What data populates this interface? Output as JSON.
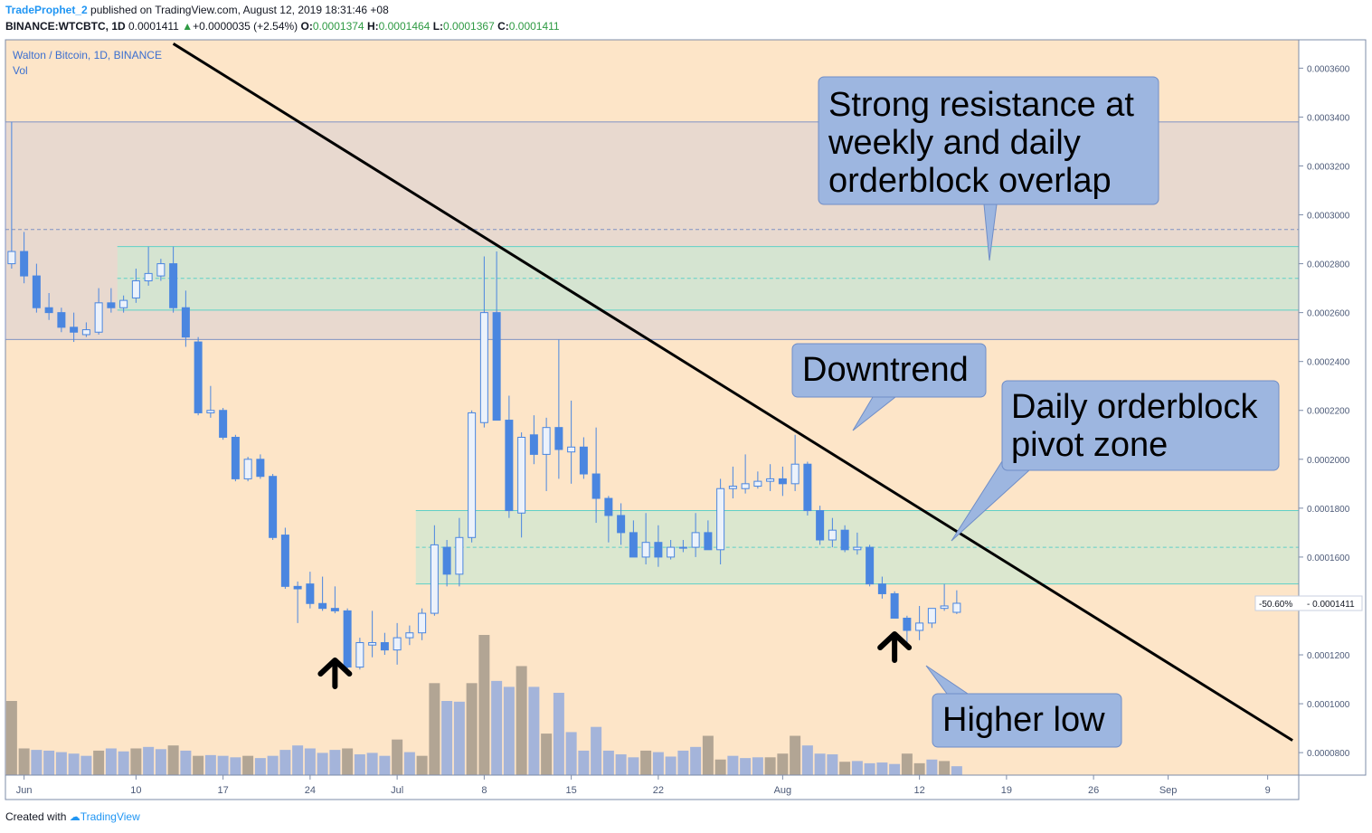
{
  "header": {
    "author": "TradeProphet_2",
    "published": "published on TradingView.com, August 12, 2019 18:31:46 +08",
    "symbol": "BINANCE:WTCBTC, 1D",
    "last": "0.0001411",
    "change": "+0.0000035 (+2.54%)",
    "o_label": "O:",
    "o": "0.0001374",
    "h_label": "H:",
    "h": "0.0001464",
    "l_label": "L:",
    "l": "0.0001367",
    "c_label": "C:",
    "c": "0.0001411"
  },
  "legend": {
    "title": "Walton / Bitcoin, 1D, BINANCE",
    "vol": "Vol"
  },
  "footer": {
    "created": "Created with",
    "brand": "TradingView"
  },
  "colors": {
    "background": "#fde5c8",
    "bull_fill": "#ecf2fb",
    "candle": "#4a86e0",
    "vol_up": "#a4b4da",
    "vol_down": "#b2a594",
    "trendline": "#000000",
    "zone_fill": "#cfe7d2",
    "zone_line": "#5fd0c7",
    "resist_fill": "#e8d9cf",
    "callout_fill": "#9db6e0",
    "callout_stroke": "#6f8dc7"
  },
  "chart_data": {
    "type": "candlestick",
    "x_axis": {
      "start": "2019-05-31",
      "end": "2019-09-11",
      "tick_labels": [
        "Jun",
        "10",
        "17",
        "24",
        "Jul",
        "8",
        "15",
        "22",
        "Aug",
        "12",
        "19",
        "26",
        "Sep",
        "9"
      ],
      "tick_dates": [
        "2019-06-01",
        "2019-06-10",
        "2019-06-17",
        "2019-06-24",
        "2019-07-01",
        "2019-07-08",
        "2019-07-15",
        "2019-07-22",
        "2019-08-01",
        "2019-08-12",
        "2019-08-19",
        "2019-08-26",
        "2019-09-01",
        "2019-09-09"
      ]
    },
    "y_axis": {
      "min": 7.08e-05,
      "max": 0.0003716,
      "tick_labels": [
        "0.0000800",
        "0.0001000",
        "0.0001200",
        "0.0001400",
        "0.0001600",
        "0.0001800",
        "0.0002000",
        "0.0002200",
        "0.0002400",
        "0.0002600",
        "0.0002800",
        "0.0003000",
        "0.0003200",
        "0.0003400",
        "0.0003600"
      ],
      "tick_values": [
        8e-05,
        0.0001,
        0.00012,
        0.00014,
        0.00016,
        0.00018,
        0.0002,
        0.00022,
        0.00024,
        0.00026,
        0.00028,
        0.0003,
        0.00032,
        0.00034,
        0.00036
      ]
    },
    "price_tag": {
      "percent": "-50.60%",
      "value": "0.0001411",
      "price": 0.0001411
    },
    "candles_ohlc": [
      [
        0.00028,
        0.000338,
        0.000278,
        0.000285
      ],
      [
        0.000285,
        0.000293,
        0.000272,
        0.000275
      ],
      [
        0.000275,
        0.00028,
        0.00026,
        0.000262
      ],
      [
        0.000262,
        0.000268,
        0.000257,
        0.00026
      ],
      [
        0.00026,
        0.000262,
        0.000252,
        0.000254
      ],
      [
        0.000254,
        0.00026,
        0.000248,
        0.000252
      ],
      [
        0.000251,
        0.000256,
        0.00025,
        0.000253
      ],
      [
        0.000252,
        0.00027,
        0.000251,
        0.000264
      ],
      [
        0.000264,
        0.00027,
        0.00026,
        0.000262
      ],
      [
        0.000262,
        0.000267,
        0.00026,
        0.000265
      ],
      [
        0.000266,
        0.000278,
        0.000264,
        0.000273
      ],
      [
        0.000273,
        0.000287,
        0.000271,
        0.000276
      ],
      [
        0.000275,
        0.000282,
        0.000273,
        0.00028
      ],
      [
        0.00028,
        0.000287,
        0.00026,
        0.000262
      ],
      [
        0.000262,
        0.000269,
        0.000246,
        0.00025
      ],
      [
        0.000248,
        0.00025,
        0.000218,
        0.000219
      ],
      [
        0.000219,
        0.00023,
        0.000217,
        0.00022
      ],
      [
        0.00022,
        0.000221,
        0.000208,
        0.000209
      ],
      [
        0.000209,
        0.00021,
        0.000191,
        0.000192
      ],
      [
        0.000192,
        0.000201,
        0.000191,
        0.0002
      ],
      [
        0.0002,
        0.000202,
        0.000192,
        0.000193
      ],
      [
        0.000193,
        0.000194,
        0.000167,
        0.000168
      ],
      [
        0.000169,
        0.000172,
        0.000147,
        0.000148
      ],
      [
        0.000148,
        0.00015,
        0.000133,
        0.000147
      ],
      [
        0.000149,
        0.000154,
        0.000139,
        0.000141
      ],
      [
        0.000141,
        0.000152,
        0.000138,
        0.000139
      ],
      [
        0.000139,
        0.000148,
        0.000137,
        0.000138
      ],
      [
        0.000138,
        0.000139,
        0.000113,
        0.000115
      ],
      [
        0.000115,
        0.000127,
        0.000114,
        0.000125
      ],
      [
        0.000124,
        0.000138,
        0.000119,
        0.000125
      ],
      [
        0.000125,
        0.000129,
        0.00012,
        0.000122
      ],
      [
        0.000122,
        0.000133,
        0.000116,
        0.000127
      ],
      [
        0.000127,
        0.000132,
        0.000124,
        0.000129
      ],
      [
        0.000129,
        0.000139,
        0.000126,
        0.000137
      ],
      [
        0.000137,
        0.000173,
        0.000136,
        0.000165
      ],
      [
        0.000164,
        0.000167,
        0.000148,
        0.000153
      ],
      [
        0.000153,
        0.000176,
        0.000148,
        0.000168
      ],
      [
        0.000168,
        0.00022,
        0.000166,
        0.000219
      ],
      [
        0.000215,
        0.000283,
        0.000213,
        0.00026
      ],
      [
        0.00026,
        0.000285,
        0.000216,
        0.000216
      ],
      [
        0.000216,
        0.000226,
        0.000176,
        0.000179
      ],
      [
        0.000178,
        0.000211,
        0.000168,
        0.000209
      ],
      [
        0.00021,
        0.000218,
        0.000198,
        0.000202
      ],
      [
        0.000202,
        0.000217,
        0.000187,
        0.000213
      ],
      [
        0.000213,
        0.000249,
        0.000192,
        0.000204
      ],
      [
        0.000203,
        0.000224,
        0.00019,
        0.000205
      ],
      [
        0.000205,
        0.000209,
        0.000192,
        0.000194
      ],
      [
        0.000194,
        0.000213,
        0.000174,
        0.000184
      ],
      [
        0.000184,
        0.000185,
        0.000166,
        0.000177
      ],
      [
        0.000177,
        0.000182,
        0.000165,
        0.00017
      ],
      [
        0.00017,
        0.000175,
        0.000164,
        0.00016
      ],
      [
        0.00016,
        0.000178,
        0.000157,
        0.000166
      ],
      [
        0.000166,
        0.000173,
        0.000156,
        0.00016
      ],
      [
        0.00016,
        0.000167,
        0.000159,
        0.000164
      ],
      [
        0.000164,
        0.000167,
        0.000162,
        0.000164
      ],
      [
        0.000164,
        0.000178,
        0.00016,
        0.00017
      ],
      [
        0.00017,
        0.000175,
        0.000163,
        0.000163
      ],
      [
        0.000163,
        0.000192,
        0.000157,
        0.000188
      ],
      [
        0.000188,
        0.000197,
        0.000184,
        0.000189
      ],
      [
        0.000188,
        0.000202,
        0.000186,
        0.00019
      ],
      [
        0.000189,
        0.000195,
        0.000188,
        0.000191
      ],
      [
        0.000191,
        0.000198,
        0.000187,
        0.000192
      ],
      [
        0.000192,
        0.000197,
        0.000185,
        0.00019
      ],
      [
        0.00019,
        0.00021,
        0.000187,
        0.000198
      ],
      [
        0.000198,
        0.000199,
        0.000177,
        0.000179
      ],
      [
        0.000179,
        0.000181,
        0.000165,
        0.000167
      ],
      [
        0.000167,
        0.000176,
        0.000164,
        0.000171
      ],
      [
        0.000171,
        0.000173,
        0.000162,
        0.000163
      ],
      [
        0.000163,
        0.00017,
        0.000161,
        0.000164
      ],
      [
        0.000164,
        0.000165,
        0.000148,
        0.000149
      ],
      [
        0.000149,
        0.000152,
        0.000143,
        0.000145
      ],
      [
        0.000145,
        0.000146,
        0.000135,
        0.000135
      ],
      [
        0.000135,
        0.000136,
        0.000125,
        0.00013
      ],
      [
        0.00013,
        0.00014,
        0.000126,
        0.000133
      ],
      [
        0.000133,
        0.000138,
        0.000131,
        0.000139
      ],
      [
        0.000139,
        0.000149,
        0.000138,
        0.00014
      ],
      [
        0.0001374,
        0.0001464,
        0.0001367,
        0.0001411
      ]
    ],
    "volume": [
      [
        1.0,
        0
      ],
      [
        0.36,
        0
      ],
      [
        0.34,
        1
      ],
      [
        0.33,
        1
      ],
      [
        0.31,
        1
      ],
      [
        0.29,
        1
      ],
      [
        0.26,
        1
      ],
      [
        0.33,
        0
      ],
      [
        0.36,
        1
      ],
      [
        0.32,
        1
      ],
      [
        0.36,
        0
      ],
      [
        0.38,
        1
      ],
      [
        0.35,
        1
      ],
      [
        0.4,
        0
      ],
      [
        0.33,
        1
      ],
      [
        0.26,
        0
      ],
      [
        0.27,
        1
      ],
      [
        0.26,
        1
      ],
      [
        0.24,
        1
      ],
      [
        0.26,
        0
      ],
      [
        0.23,
        1
      ],
      [
        0.26,
        1
      ],
      [
        0.34,
        1
      ],
      [
        0.4,
        1
      ],
      [
        0.36,
        1
      ],
      [
        0.3,
        1
      ],
      [
        0.34,
        1
      ],
      [
        0.36,
        0
      ],
      [
        0.28,
        1
      ],
      [
        0.3,
        1
      ],
      [
        0.26,
        1
      ],
      [
        0.48,
        0
      ],
      [
        0.31,
        1
      ],
      [
        0.26,
        0
      ],
      [
        1.24,
        0
      ],
      [
        1.0,
        1
      ],
      [
        0.99,
        1
      ],
      [
        1.24,
        0
      ],
      [
        1.89,
        0
      ],
      [
        1.27,
        1
      ],
      [
        1.19,
        1
      ],
      [
        1.47,
        0
      ],
      [
        1.19,
        1
      ],
      [
        0.56,
        0
      ],
      [
        1.11,
        1
      ],
      [
        0.58,
        1
      ],
      [
        0.33,
        1
      ],
      [
        0.65,
        1
      ],
      [
        0.33,
        1
      ],
      [
        0.28,
        1
      ],
      [
        0.24,
        1
      ],
      [
        0.33,
        0
      ],
      [
        0.31,
        1
      ],
      [
        0.25,
        1
      ],
      [
        0.33,
        1
      ],
      [
        0.38,
        1
      ],
      [
        0.53,
        0
      ],
      [
        0.21,
        0
      ],
      [
        0.26,
        1
      ],
      [
        0.23,
        1
      ],
      [
        0.24,
        1
      ],
      [
        0.24,
        0
      ],
      [
        0.29,
        0
      ],
      [
        0.53,
        0
      ],
      [
        0.4,
        1
      ],
      [
        0.29,
        1
      ],
      [
        0.28,
        1
      ],
      [
        0.18,
        0
      ],
      [
        0.19,
        1
      ],
      [
        0.16,
        1
      ],
      [
        0.17,
        1
      ],
      [
        0.15,
        1
      ],
      [
        0.29,
        0
      ],
      [
        0.16,
        0
      ],
      [
        0.21,
        1
      ],
      [
        0.19,
        0
      ],
      [
        0.12,
        1
      ]
    ],
    "zones": [
      {
        "from": 0.000249,
        "to": 0.000338,
        "kind": "resistance",
        "start_date": "2019-05-31"
      },
      {
        "from": 0.000261,
        "to": 0.000287,
        "mid": 0.000274,
        "kind": "orderblock",
        "start_date": "2019-06-09"
      },
      {
        "from": 0.000149,
        "to": 0.000179,
        "mid": 0.000164,
        "kind": "orderblock",
        "start_date": "2019-07-03"
      }
    ],
    "dashed_level": 0.000294,
    "trendline": {
      "from": [
        "2019-06-13",
        0.00037
      ],
      "to": [
        "2019-09-11",
        8.5e-05
      ]
    },
    "annotations": [
      {
        "lines": [
          "Strong resistance at",
          "weekly and daily",
          "orderblock overlap"
        ]
      },
      {
        "lines": [
          "Downtrend"
        ]
      },
      {
        "lines": [
          "Daily orderblock",
          "pivot zone"
        ]
      },
      {
        "lines": [
          "Higher low"
        ]
      }
    ],
    "up_arrows": [
      "2019-06-26",
      "2019-08-10"
    ]
  }
}
